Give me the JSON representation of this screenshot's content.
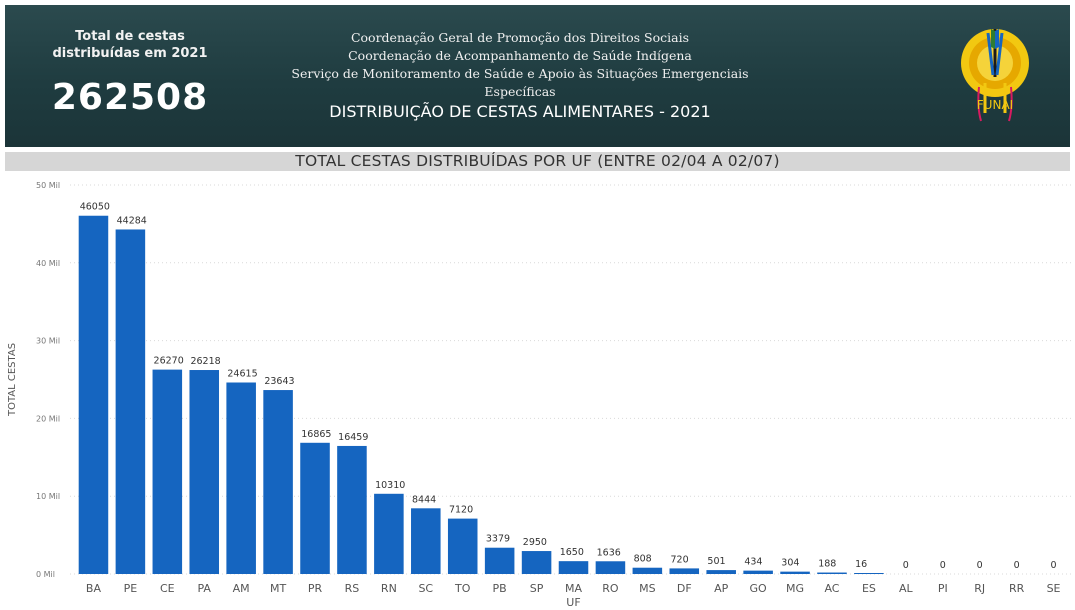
{
  "header": {
    "kpi_label_line1": "Total de cestas",
    "kpi_label_line2": "distribuídas em 2021",
    "kpi_value": "262508",
    "org_line1": "Coordenação Geral de Promoção dos Direitos Sociais",
    "org_line2": "Coordenação de Acompanhamento de Saúde Indígena",
    "org_line3": "Serviço de Monitoramento de Saúde e Apoio às Situações Emergenciais Específicas",
    "main_title": "DISTRIBUIÇÃO DE CESTAS ALIMENTARES - 2021",
    "logo_text": "FUNAI"
  },
  "colors": {
    "bar": "#1565c0",
    "header_bg": "#234247",
    "title_bar_bg": "#d6d6d6"
  },
  "chart_data": {
    "type": "bar",
    "title": "TOTAL CESTAS DISTRIBUÍDAS POR UF (ENTRE 02/04 A 02/07)",
    "xlabel": "UF",
    "ylabel": "TOTAL CESTAS",
    "ylim": [
      0,
      50000
    ],
    "yticks": [
      0,
      10000,
      20000,
      30000,
      40000,
      50000
    ],
    "ytick_labels": [
      "0 Mil",
      "10 Mil",
      "20 Mil",
      "30 Mil",
      "40 Mil",
      "50 Mil"
    ],
    "grid": true,
    "categories": [
      "BA",
      "PE",
      "CE",
      "PA",
      "AM",
      "MT",
      "PR",
      "RS",
      "RN",
      "SC",
      "TO",
      "PB",
      "SP",
      "MA",
      "RO",
      "MS",
      "DF",
      "AP",
      "GO",
      "MG",
      "AC",
      "ES",
      "AL",
      "PI",
      "RJ",
      "RR",
      "SE"
    ],
    "values": [
      46050,
      44284,
      26270,
      26218,
      24615,
      23643,
      16865,
      16459,
      10310,
      8444,
      7120,
      3379,
      2950,
      1650,
      1636,
      808,
      720,
      501,
      434,
      304,
      188,
      16,
      0,
      0,
      0,
      0,
      0
    ]
  }
}
